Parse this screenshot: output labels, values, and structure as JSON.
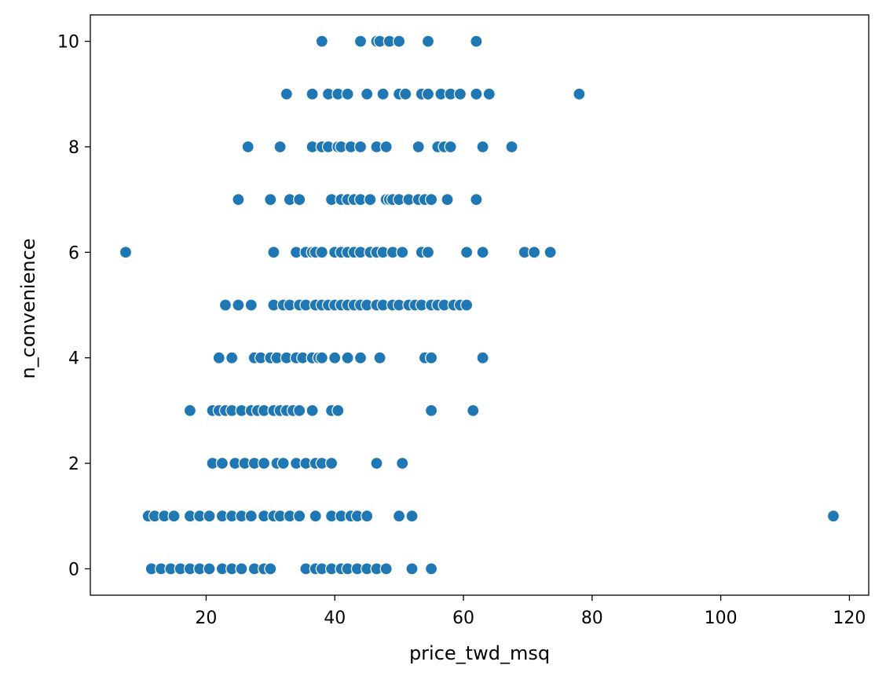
{
  "chart_data": {
    "type": "scatter",
    "title": "",
    "xlabel": "price_twd_msq",
    "ylabel": "n_convenience",
    "xlim": [
      2,
      123
    ],
    "ylim": [
      -0.5,
      10.5
    ],
    "xticks": [
      20,
      40,
      60,
      80,
      100,
      120
    ],
    "yticks": [
      0,
      2,
      4,
      6,
      8,
      10
    ],
    "grid": false,
    "marker_color": "#1f77b4",
    "x": [
      38.0,
      44.0,
      46.5,
      47.0,
      48.5,
      50.0,
      54.5,
      62.0,
      32.5,
      36.5,
      39.0,
      40.5,
      42.0,
      45.0,
      47.5,
      50.0,
      51.0,
      53.5,
      54.5,
      56.5,
      58.0,
      59.5,
      62.0,
      64.0,
      78.0,
      26.5,
      31.5,
      36.5,
      38.0,
      39.0,
      40.5,
      41.0,
      42.5,
      44.0,
      46.5,
      48.0,
      53.0,
      56.0,
      57.0,
      58.0,
      63.0,
      67.5,
      25.0,
      30.0,
      33.0,
      34.5,
      39.5,
      41.0,
      42.0,
      43.0,
      44.0,
      45.5,
      48.0,
      48.5,
      49.0,
      50.0,
      51.5,
      53.0,
      54.0,
      55.0,
      57.5,
      62.0,
      7.5,
      30.5,
      34.0,
      35.5,
      36.5,
      37.0,
      38.0,
      40.0,
      41.0,
      42.0,
      43.0,
      44.0,
      45.5,
      46.5,
      47.5,
      49.0,
      50.5,
      53.5,
      54.5,
      60.5,
      63.0,
      69.5,
      71.0,
      73.5,
      23.0,
      25.0,
      27.0,
      30.5,
      32.0,
      33.0,
      34.5,
      35.5,
      37.0,
      38.0,
      39.0,
      40.0,
      41.0,
      42.0,
      43.0,
      44.0,
      45.0,
      46.5,
      47.5,
      49.0,
      50.0,
      51.5,
      52.5,
      53.5,
      55.0,
      56.0,
      57.0,
      58.5,
      59.5,
      60.5,
      22.0,
      24.0,
      27.5,
      28.5,
      30.0,
      31.0,
      32.5,
      34.0,
      35.0,
      36.5,
      37.5,
      38.0,
      40.0,
      42.0,
      44.0,
      47.0,
      54.0,
      55.0,
      63.0,
      17.5,
      21.0,
      22.0,
      23.0,
      24.0,
      25.5,
      27.0,
      28.0,
      29.0,
      30.5,
      31.5,
      32.5,
      33.5,
      34.5,
      36.5,
      39.5,
      40.5,
      55.0,
      61.5,
      21.0,
      22.5,
      24.5,
      26.0,
      27.5,
      29.0,
      31.0,
      32.0,
      34.0,
      35.5,
      37.0,
      38.0,
      39.5,
      46.5,
      50.5,
      11.0,
      12.0,
      13.5,
      15.0,
      17.5,
      19.0,
      20.5,
      22.5,
      24.0,
      25.5,
      27.0,
      29.0,
      30.5,
      31.5,
      33.0,
      34.5,
      37.0,
      39.5,
      41.0,
      42.5,
      43.5,
      45.0,
      50.0,
      52.0,
      117.5,
      11.5,
      13.0,
      14.5,
      16.0,
      17.5,
      19.0,
      20.5,
      22.5,
      24.0,
      25.5,
      27.5,
      29.0,
      30.0,
      35.5,
      37.0,
      38.0,
      39.5,
      41.0,
      42.0,
      43.5,
      45.0,
      46.5,
      48.0,
      52.0,
      55.0
    ],
    "y": [
      10,
      10,
      10,
      10,
      10,
      10,
      10,
      10,
      9,
      9,
      9,
      9,
      9,
      9,
      9,
      9,
      9,
      9,
      9,
      9,
      9,
      9,
      9,
      9,
      9,
      8,
      8,
      8,
      8,
      8,
      8,
      8,
      8,
      8,
      8,
      8,
      8,
      8,
      8,
      8,
      8,
      8,
      7,
      7,
      7,
      7,
      7,
      7,
      7,
      7,
      7,
      7,
      7,
      7,
      7,
      7,
      7,
      7,
      7,
      7,
      7,
      7,
      6,
      6,
      6,
      6,
      6,
      6,
      6,
      6,
      6,
      6,
      6,
      6,
      6,
      6,
      6,
      6,
      6,
      6,
      6,
      6,
      6,
      6,
      6,
      6,
      5,
      5,
      5,
      5,
      5,
      5,
      5,
      5,
      5,
      5,
      5,
      5,
      5,
      5,
      5,
      5,
      5,
      5,
      5,
      5,
      5,
      5,
      5,
      5,
      5,
      5,
      5,
      5,
      5,
      5,
      4,
      4,
      4,
      4,
      4,
      4,
      4,
      4,
      4,
      4,
      4,
      4,
      4,
      4,
      4,
      4,
      4,
      4,
      4,
      3,
      3,
      3,
      3,
      3,
      3,
      3,
      3,
      3,
      3,
      3,
      3,
      3,
      3,
      3,
      3,
      3,
      3,
      3,
      2,
      2,
      2,
      2,
      2,
      2,
      2,
      2,
      2,
      2,
      2,
      2,
      2,
      2,
      2,
      1,
      1,
      1,
      1,
      1,
      1,
      1,
      1,
      1,
      1,
      1,
      1,
      1,
      1,
      1,
      1,
      1,
      1,
      1,
      1,
      1,
      1,
      1,
      1,
      1,
      0,
      0,
      0,
      0,
      0,
      0,
      0,
      0,
      0,
      0,
      0,
      0,
      0,
      0,
      0,
      0,
      0,
      0,
      0,
      0,
      0,
      0,
      0,
      0,
      0
    ]
  }
}
